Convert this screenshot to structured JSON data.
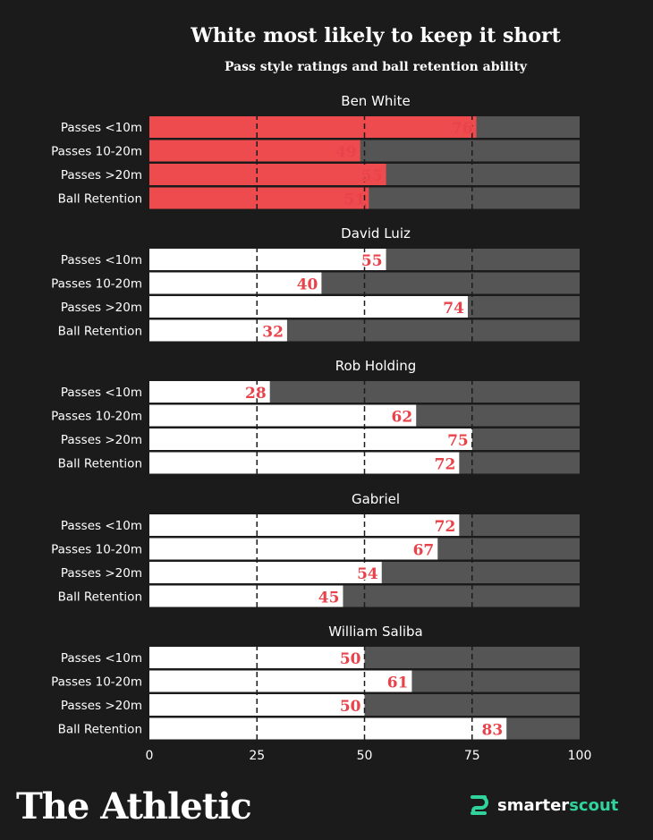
{
  "colors": {
    "background": "#1b1b1b",
    "highlight_bar": "#ee4b4f",
    "default_bar": "#ffffff",
    "track": "#555555",
    "value_text": "#e8434a",
    "brand_green": "#2fd39b"
  },
  "chart_data": {
    "type": "bar",
    "orientation": "horizontal",
    "title": "White most likely to keep it short",
    "subtitle": "Pass style ratings and ball retention ability",
    "categories": [
      "Passes <10m",
      "Passes 10-20m",
      "Passes >20m",
      "Ball Retention"
    ],
    "xlim": [
      0,
      100
    ],
    "xticks": [
      0,
      25,
      50,
      75,
      100
    ],
    "grid": "dashed vertical lines at 25, 50, 75",
    "highlighted_series": "Ben White",
    "series": [
      {
        "name": "Ben White",
        "values": [
          76,
          49,
          55,
          51
        ]
      },
      {
        "name": "David Luiz",
        "values": [
          55,
          40,
          74,
          32
        ]
      },
      {
        "name": "Rob Holding",
        "values": [
          28,
          62,
          75,
          72
        ]
      },
      {
        "name": "Gabriel",
        "values": [
          72,
          67,
          54,
          45
        ]
      },
      {
        "name": "William Saliba",
        "values": [
          50,
          61,
          50,
          83
        ]
      }
    ]
  },
  "brand": {
    "publisher": "The Athletic",
    "partner_prefix": "smarter",
    "partner_suffix": "scout",
    "partner_icon": "smarterscout-logo-icon"
  }
}
